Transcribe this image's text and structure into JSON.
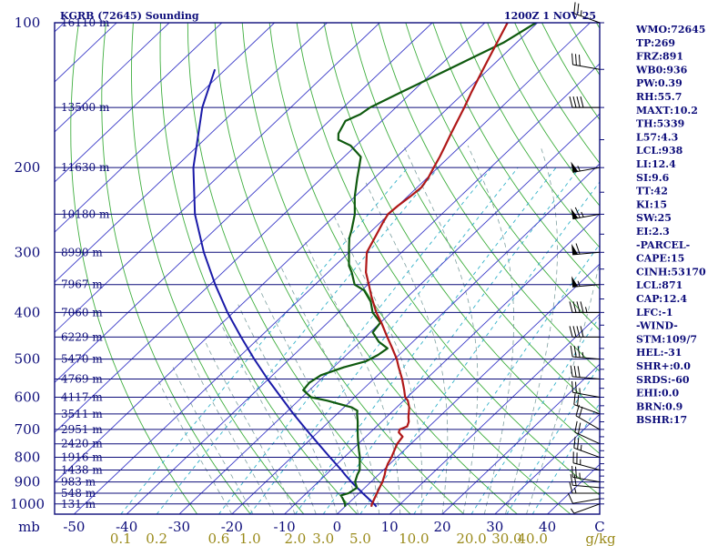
{
  "title_left": "KGRB (72645) Sounding",
  "title_right": "1200Z  1 NOV 25",
  "colors": {
    "frame": "#0d0d7a",
    "isobar": "#0d0d7a",
    "isotherm": "#3b3bc8",
    "dry_adiabat": "#3fae3f",
    "moist_adiabat": "#7fa0a0",
    "mixing_ratio": "#30b0c8",
    "temperature": "#b01818",
    "dewpoint": "#0f5a0f",
    "parcel": "#1a1aa8",
    "wind": "#000000"
  },
  "chart_data": {
    "type": "skew-t",
    "pressure_axis_label": "mb",
    "pressure_ticks": [
      100,
      200,
      300,
      400,
      500,
      600,
      700,
      800,
      900,
      1000
    ],
    "temperature_ticks": [
      "-50",
      "-40",
      "-30",
      "-20",
      "-10",
      "0",
      "10",
      "20",
      "30",
      "40",
      "C"
    ],
    "temperature_values": [
      -50,
      -40,
      -30,
      -20,
      -10,
      0,
      10,
      20,
      30,
      40
    ],
    "mixing_ratio_unit": "g/kg",
    "mixing_ratio_ticks": [
      "0.1",
      "0.2",
      "0.6",
      "1.0",
      "2.0",
      "3.0",
      "5.0",
      "10.0",
      "20.0",
      "30.0",
      "40.0"
    ],
    "mixing_ratio_values": [
      0.1,
      0.2,
      0.6,
      1.0,
      2.0,
      3.0,
      5.0,
      10.0,
      20.0,
      30.0,
      40.0
    ],
    "height_labels": [
      {
        "p": 100,
        "label": "16110 m"
      },
      {
        "p": 150,
        "label": "13500 m"
      },
      {
        "p": 200,
        "label": "11630 m"
      },
      {
        "p": 250,
        "label": "10180 m"
      },
      {
        "p": 300,
        "label": "8990 m"
      },
      {
        "p": 350,
        "label": "7967 m"
      },
      {
        "p": 400,
        "label": "7060 m"
      },
      {
        "p": 450,
        "label": "6229 m"
      },
      {
        "p": 500,
        "label": "5470 m"
      },
      {
        "p": 550,
        "label": "4769 m"
      },
      {
        "p": 600,
        "label": "4117 m"
      },
      {
        "p": 650,
        "label": "3511 m"
      },
      {
        "p": 700,
        "label": "2951 m"
      },
      {
        "p": 750,
        "label": "2420 m"
      },
      {
        "p": 800,
        "label": "1916 m"
      },
      {
        "p": 850,
        "label": "1438 m"
      },
      {
        "p": 900,
        "label": "983 m"
      },
      {
        "p": 950,
        "label": "548 m"
      },
      {
        "p": 1000,
        "label": "131 m"
      }
    ],
    "temperature_profile": [
      [
        1013,
        5.0
      ],
      [
        1000,
        4.6
      ],
      [
        975,
        4.0
      ],
      [
        950,
        3.4
      ],
      [
        925,
        2.8
      ],
      [
        900,
        2.2
      ],
      [
        870,
        1.2
      ],
      [
        850,
        0.4
      ],
      [
        825,
        -0.4
      ],
      [
        800,
        -1.0
      ],
      [
        775,
        -1.8
      ],
      [
        750,
        -2.6
      ],
      [
        725,
        -3.0
      ],
      [
        710,
        -4.6
      ],
      [
        700,
        -5.0
      ],
      [
        690,
        -4.2
      ],
      [
        675,
        -4.8
      ],
      [
        660,
        -5.8
      ],
      [
        650,
        -6.4
      ],
      [
        630,
        -7.6
      ],
      [
        610,
        -9.2
      ],
      [
        600,
        -10.4
      ],
      [
        580,
        -12.0
      ],
      [
        550,
        -14.6
      ],
      [
        520,
        -17.6
      ],
      [
        500,
        -19.6
      ],
      [
        470,
        -23.2
      ],
      [
        450,
        -25.8
      ],
      [
        420,
        -29.8
      ],
      [
        400,
        -32.8
      ],
      [
        370,
        -37.0
      ],
      [
        350,
        -39.8
      ],
      [
        330,
        -42.8
      ],
      [
        300,
        -46.6
      ],
      [
        280,
        -48.0
      ],
      [
        260,
        -49.5
      ],
      [
        250,
        -50.2
      ],
      [
        240,
        -50.0
      ],
      [
        230,
        -49.5
      ],
      [
        220,
        -49.2
      ],
      [
        210,
        -49.8
      ],
      [
        200,
        -50.8
      ],
      [
        190,
        -51.8
      ],
      [
        180,
        -53.0
      ],
      [
        170,
        -54.3
      ],
      [
        160,
        -55.6
      ],
      [
        150,
        -57.0
      ],
      [
        140,
        -58.6
      ],
      [
        130,
        -60.2
      ],
      [
        120,
        -61.9
      ],
      [
        110,
        -63.7
      ],
      [
        100,
        -65.7
      ]
    ],
    "dewpoint_profile": [
      [
        1013,
        0.0
      ],
      [
        1000,
        -0.5
      ],
      [
        975,
        -2.0
      ],
      [
        960,
        -3.0
      ],
      [
        950,
        -2.0
      ],
      [
        925,
        -1.5
      ],
      [
        900,
        -3.0
      ],
      [
        870,
        -4.0
      ],
      [
        850,
        -4.5
      ],
      [
        820,
        -6.0
      ],
      [
        800,
        -7.0
      ],
      [
        775,
        -8.5
      ],
      [
        750,
        -10.0
      ],
      [
        725,
        -11.5
      ],
      [
        700,
        -13.0
      ],
      [
        675,
        -14.5
      ],
      [
        650,
        -16.2
      ],
      [
        640,
        -16.8
      ],
      [
        630,
        -18.5
      ],
      [
        610,
        -24.5
      ],
      [
        600,
        -28.3
      ],
      [
        580,
        -31.2
      ],
      [
        560,
        -31.5
      ],
      [
        540,
        -30.8
      ],
      [
        520,
        -28.0
      ],
      [
        505,
        -25.0
      ],
      [
        490,
        -24.0
      ],
      [
        475,
        -23.5
      ],
      [
        460,
        -26.5
      ],
      [
        440,
        -29.5
      ],
      [
        420,
        -30.0
      ],
      [
        400,
        -33.5
      ],
      [
        380,
        -36.0
      ],
      [
        360,
        -39.5
      ],
      [
        350,
        -42.5
      ],
      [
        330,
        -45.5
      ],
      [
        320,
        -47.3
      ],
      [
        300,
        -50.0
      ],
      [
        290,
        -51.4
      ],
      [
        280,
        -52.8
      ],
      [
        270,
        -53.9
      ],
      [
        250,
        -56.5
      ],
      [
        230,
        -60.0
      ],
      [
        210,
        -63.3
      ],
      [
        200,
        -65.0
      ],
      [
        190,
        -66.8
      ],
      [
        180,
        -71.0
      ],
      [
        175,
        -74.5
      ],
      [
        170,
        -75.7
      ],
      [
        160,
        -76.9
      ],
      [
        155,
        -75.4
      ],
      [
        150,
        -74.9
      ],
      [
        140,
        -72.2
      ],
      [
        130,
        -69.2
      ],
      [
        120,
        -66.0
      ],
      [
        110,
        -62.5
      ],
      [
        100,
        -60.3
      ]
    ],
    "parcel_profile": [
      [
        1013,
        6.0
      ],
      [
        1000,
        5.0
      ],
      [
        975,
        2.9
      ],
      [
        950,
        0.7
      ],
      [
        938,
        -0.3
      ],
      [
        925,
        -1.5
      ],
      [
        900,
        -3.7
      ],
      [
        871,
        -6.2
      ],
      [
        850,
        -8.0
      ],
      [
        800,
        -12.7
      ],
      [
        750,
        -17.6
      ],
      [
        700,
        -22.8
      ],
      [
        650,
        -28.3
      ],
      [
        600,
        -34.0
      ],
      [
        550,
        -40.2
      ],
      [
        500,
        -46.7
      ],
      [
        450,
        -53.6
      ],
      [
        400,
        -61.1
      ],
      [
        350,
        -69.0
      ],
      [
        300,
        -77.6
      ],
      [
        250,
        -86.9
      ],
      [
        200,
        -96.5
      ],
      [
        150,
        -106.8
      ],
      [
        125,
        -112.0
      ]
    ],
    "wind_barbs": [
      {
        "p": 1000,
        "dir": 250,
        "spd": 5
      },
      {
        "p": 975,
        "dir": 260,
        "spd": 10
      },
      {
        "p": 950,
        "dir": 270,
        "spd": 15
      },
      {
        "p": 925,
        "dir": 275,
        "spd": 20
      },
      {
        "p": 900,
        "dir": 280,
        "spd": 25
      },
      {
        "p": 850,
        "dir": 285,
        "spd": 25
      },
      {
        "p": 800,
        "dir": 290,
        "spd": 25
      },
      {
        "p": 750,
        "dir": 295,
        "spd": 20
      },
      {
        "p": 700,
        "dir": 300,
        "spd": 20
      },
      {
        "p": 650,
        "dir": 290,
        "spd": 20
      },
      {
        "p": 600,
        "dir": 280,
        "spd": 25
      },
      {
        "p": 550,
        "dir": 275,
        "spd": 30
      },
      {
        "p": 500,
        "dir": 275,
        "spd": 35
      },
      {
        "p": 450,
        "dir": 270,
        "spd": 40
      },
      {
        "p": 400,
        "dir": 270,
        "spd": 45
      },
      {
        "p": 350,
        "dir": 265,
        "spd": 55
      },
      {
        "p": 300,
        "dir": 265,
        "spd": 60
      },
      {
        "p": 250,
        "dir": 260,
        "spd": 65
      },
      {
        "p": 200,
        "dir": 260,
        "spd": 55
      },
      {
        "p": 150,
        "dir": 270,
        "spd": 40
      },
      {
        "p": 125,
        "dir": 280,
        "spd": 30
      },
      {
        "p": 100,
        "dir": 290,
        "spd": 25
      }
    ],
    "indices": [
      "WMO:72645",
      "TP:269",
      "FRZ:891",
      "WB0:936",
      "PW:0.39",
      "RH:55.7",
      "MAXT:10.2",
      "TH:5339",
      "L57:4.3",
      "LCL:938",
      "LI:12.4",
      "SI:9.6",
      "TT:42",
      "KI:15",
      "SW:25",
      "EI:2.3",
      "-PARCEL-",
      "CAPE:15",
      "CINH:53170",
      "LCL:871",
      "CAP:12.4",
      "LFC:-1",
      "-WIND-",
      "STM:109/7",
      "HEL:-31",
      "SHR+:0.0",
      "SRDS:-60",
      "EHI:0.0",
      "BRN:0.9",
      "BSHR:17"
    ]
  }
}
